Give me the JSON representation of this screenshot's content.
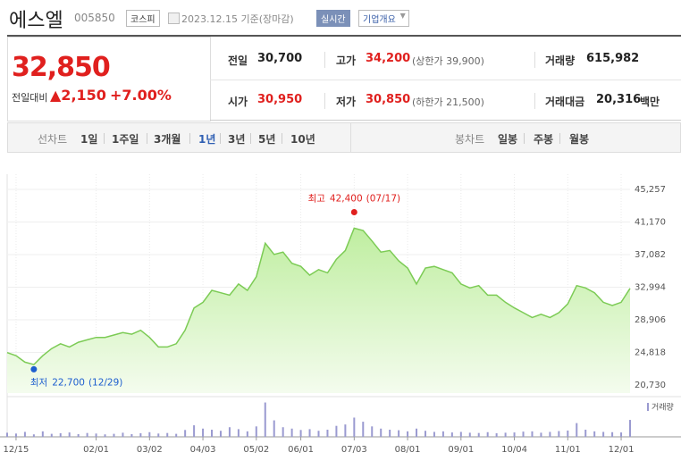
{
  "header": {
    "name": "에스엘",
    "code": "005850",
    "market": "코스피",
    "date": "2023.12.15 기준(장마감)",
    "realtime": "실시간",
    "company_info": "기업개요"
  },
  "summary": {
    "price": "32,850",
    "change_label": "전일대비",
    "change": "▲2,150",
    "change_pct": "+7.00%"
  },
  "stats": [
    {
      "label": "전일",
      "value": "30,700"
    },
    {
      "label": "고가",
      "value": "34,200",
      "sub": "(상한가 39,900)"
    },
    {
      "label": "거래량",
      "value": "615,982"
    },
    {
      "label": "시가",
      "value": "30,950"
    },
    {
      "label": "저가",
      "value": "30,850",
      "sub": "(하한가 21,500)"
    },
    {
      "label": "거래대금",
      "value": "20,316",
      "unit": "백만"
    }
  ],
  "tabs": {
    "line_label": "선차트",
    "periods": [
      "1일",
      "1주일",
      "3개월",
      "1년",
      "3년",
      "5년",
      "10년"
    ],
    "candle_label": "봉차트",
    "candle_periods": [
      "일봉",
      "주봉",
      "월봉"
    ]
  },
  "chart_data": {
    "type": "line",
    "categories": [
      null,
      "12/15",
      null,
      null,
      null,
      null,
      null,
      null,
      null,
      null,
      "02/01",
      null,
      null,
      null,
      null,
      null,
      "03/02",
      null,
      null,
      null,
      null,
      null,
      "04/03",
      null,
      null,
      null,
      null,
      null,
      "05/02",
      null,
      null,
      null,
      null,
      "06/01",
      null,
      null,
      null,
      null,
      null,
      "07/03",
      null,
      null,
      null,
      null,
      null,
      "08/01",
      null,
      null,
      null,
      null,
      null,
      "09/01",
      null,
      null,
      null,
      null,
      null,
      "10/04",
      null,
      null,
      null,
      null,
      null,
      "11/01",
      null,
      null,
      null,
      null,
      null,
      "12/01",
      null
    ],
    "series": [
      {
        "color": "#7ccb55",
        "values": [
          24800,
          24400,
          23600,
          23300,
          24400,
          25300,
          25900,
          25500,
          26100,
          26400,
          26700,
          26700,
          27000,
          27300,
          27100,
          27600,
          26700,
          25500,
          25500,
          25900,
          27600,
          30400,
          31100,
          32600,
          32300,
          32000,
          33400,
          32600,
          34300,
          38500,
          37100,
          37400,
          36000,
          35600,
          34500,
          35200,
          34800,
          36500,
          37600,
          40400,
          40100,
          38800,
          37400,
          37600,
          36300,
          35400,
          33400,
          35400,
          35600,
          35200,
          34800,
          33400,
          32900,
          33200,
          32000,
          32000,
          31100,
          30400,
          29800,
          29200,
          29600,
          29200,
          29800,
          30900,
          33200,
          32900,
          32300,
          31100,
          30700,
          31100,
          32850
        ]
      },
      {
        "name": "거래량",
        "type": "bar",
        "axis": "y2",
        "color": "#9a9ad0",
        "values": [
          150000,
          120000,
          180000,
          90000,
          200000,
          110000,
          130000,
          160000,
          100000,
          140000,
          120000,
          90000,
          110000,
          150000,
          100000,
          130000,
          170000,
          120000,
          140000,
          110000,
          250000,
          420000,
          300000,
          260000,
          220000,
          350000,
          280000,
          200000,
          380000,
          1250000,
          600000,
          350000,
          300000,
          250000,
          280000,
          220000,
          260000,
          400000,
          450000,
          700000,
          550000,
          380000,
          300000,
          260000,
          240000,
          200000,
          300000,
          220000,
          180000,
          200000,
          160000,
          180000,
          150000,
          140000,
          170000,
          130000,
          150000,
          160000,
          190000,
          200000,
          150000,
          180000,
          210000,
          230000,
          500000,
          260000,
          200000,
          180000,
          170000,
          160000,
          615982
        ]
      }
    ],
    "ylim": [
      20730,
      45257
    ],
    "yticks": [
      {
        "value": 45257,
        "label": "45,257"
      },
      {
        "value": 41170,
        "label": "41,170"
      },
      {
        "value": 37082,
        "label": "37,082"
      },
      {
        "value": 32994,
        "label": "32,994"
      },
      {
        "value": 28906,
        "label": "28,906"
      },
      {
        "value": 24818,
        "label": "24,818"
      },
      {
        "value": 20730,
        "label": "20,730"
      }
    ],
    "y2lim": [
      0,
      1300000
    ],
    "grid": true,
    "annotations": [
      {
        "label": "최고",
        "value": 42400,
        "value_label": "42,400",
        "date": "(07/17)",
        "color": "#e0201e"
      },
      {
        "label": "최저",
        "value": 22700,
        "value_label": "22,700",
        "date": "(12/29)",
        "color": "#1e5fcf"
      }
    ]
  }
}
